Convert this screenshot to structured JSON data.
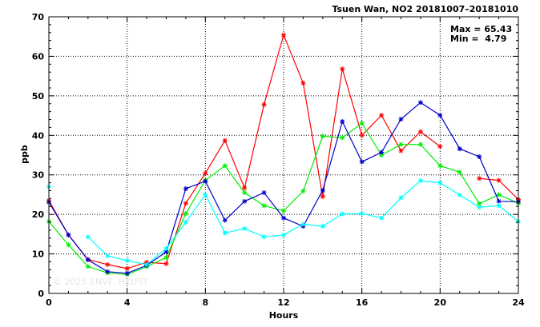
{
  "chart_data": {
    "type": "line",
    "title": "Tsuen Wan, NO2 20181007–20181010",
    "xlabel": "Hours",
    "ylabel": "ppb",
    "xlim": [
      0,
      24
    ],
    "ylim": [
      0,
      70
    ],
    "xticks": [
      0,
      4,
      8,
      12,
      16,
      20,
      24
    ],
    "yticks": [
      0,
      10,
      20,
      30,
      40,
      50,
      60,
      70
    ],
    "grid": true,
    "stats": {
      "max_label": "Max = 65.43",
      "min_label": "Min =  4.79"
    },
    "watermark": "© 2025  ENVF, HKUST",
    "series": [
      {
        "color": "#ff0000",
        "marker": "asterisk",
        "x": [
          0,
          1,
          2,
          3,
          4,
          5,
          6,
          7,
          8,
          9,
          10,
          11,
          12,
          13,
          14,
          15,
          16,
          17,
          18,
          19,
          20,
          21,
          22,
          23,
          24
        ],
        "values": [
          23.5,
          14.8,
          8.6,
          7.3,
          6.3,
          7.9,
          7.5,
          22.8,
          30.4,
          38.7,
          26.7,
          47.8,
          65.4,
          53.2,
          24.5,
          56.8,
          40.0,
          45.1,
          36.1,
          40.9,
          37.2,
          null,
          29.1,
          28.6,
          23.8
        ]
      },
      {
        "color": "#00ee00",
        "marker": "asterisk",
        "x": [
          0,
          1,
          2,
          3,
          4,
          5,
          6,
          7,
          8,
          9,
          10,
          11,
          12,
          13,
          14,
          15,
          16,
          17,
          18,
          19,
          20,
          21,
          22,
          23,
          24
        ],
        "values": [
          18.2,
          12.3,
          6.8,
          5.2,
          4.8,
          6.8,
          9.1,
          20.2,
          28.6,
          32.3,
          25.5,
          22.2,
          20.9,
          25.9,
          39.8,
          39.4,
          43.1,
          35.0,
          37.7,
          37.7,
          32.3,
          30.7,
          22.7,
          25.0,
          22.8
        ]
      },
      {
        "color": "#0000cc",
        "marker": "asterisk",
        "x": [
          0,
          1,
          2,
          3,
          4,
          5,
          6,
          7,
          8,
          9,
          10,
          11,
          12,
          13,
          14,
          15,
          16,
          17,
          18,
          19,
          20,
          21,
          22,
          23,
          24
        ],
        "values": [
          23.1,
          14.8,
          8.5,
          5.5,
          5.1,
          7.1,
          10.5,
          26.5,
          28.4,
          18.5,
          23.3,
          25.5,
          19.1,
          17.0,
          26.1,
          43.5,
          33.3,
          35.7,
          44.1,
          48.3,
          45.1,
          36.6,
          34.6,
          23.3,
          23.2
        ]
      },
      {
        "color": "#00ffff",
        "marker": "asterisk",
        "x": [
          0,
          1,
          2,
          3,
          4,
          5,
          6,
          7,
          8,
          9,
          10,
          11,
          12,
          13,
          14,
          15,
          16,
          17,
          18,
          19,
          20,
          21,
          22,
          23,
          24
        ],
        "values": [
          27.0,
          null,
          14.3,
          9.5,
          8.3,
          7.3,
          11.4,
          18.0,
          25.0,
          15.3,
          16.4,
          14.3,
          14.8,
          17.5,
          17.0,
          20.1,
          20.2,
          19.1,
          24.2,
          28.5,
          28.0,
          24.9,
          21.8,
          22.2,
          18.2
        ]
      }
    ]
  }
}
